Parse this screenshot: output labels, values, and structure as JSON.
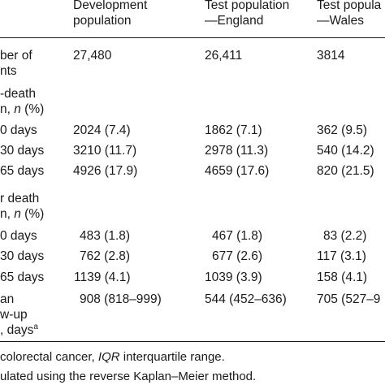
{
  "header": {
    "col1": [
      "Development",
      "population"
    ],
    "col2": [
      "Test population",
      "—England"
    ],
    "col3": [
      "Test popula",
      "—Wales"
    ]
  },
  "rows": {
    "number_label": [
      "ber of",
      "nts"
    ],
    "number_values": [
      "27,480",
      "26,411",
      "3814"
    ],
    "any_death_label": [
      "-death",
      "n, n (%)"
    ],
    "any_death": [
      {
        "label": "0 days",
        "v1": "2024 (7.4)",
        "v2": "1862 (7.1)",
        "v3": "362 (9.5)"
      },
      {
        "label": "30 days",
        "v1": "3210 (11.7)",
        "v2": "2978 (11.3)",
        "v3": "540 (14.2)"
      },
      {
        "label": "65 days",
        "v1": "4926 (17.9)",
        "v2": "4659 (17.6)",
        "v3": "820 (21.5)"
      }
    ],
    "other_death_label": [
      "r death",
      "n, n (%)"
    ],
    "other_death": [
      {
        "label": "0 days",
        "v1": "483 (1.8)",
        "v2": "467 (1.8)",
        "v3": "83 (2.2)"
      },
      {
        "label": "30 days",
        "v1": "762 (2.8)",
        "v2": "677 (2.6)",
        "v3": "117 (3.1)"
      },
      {
        "label": "65 days",
        "v1": "1139 (4.1)",
        "v2": "1039 (3.9)",
        "v3": "158 (4.1)"
      }
    ],
    "followup_label": [
      "an",
      "w-up",
      ", days",
      "a"
    ],
    "followup_values": [
      "908 (818–999)",
      "544 (452–636)",
      "705 (527–9"
    ]
  },
  "footnotes": {
    "line1_pre": "colorectal cancer, ",
    "line1_em": "IQR",
    "line1_post": " interquartile range.",
    "line2": "ulated using the reverse Kaplan–Meier method."
  }
}
